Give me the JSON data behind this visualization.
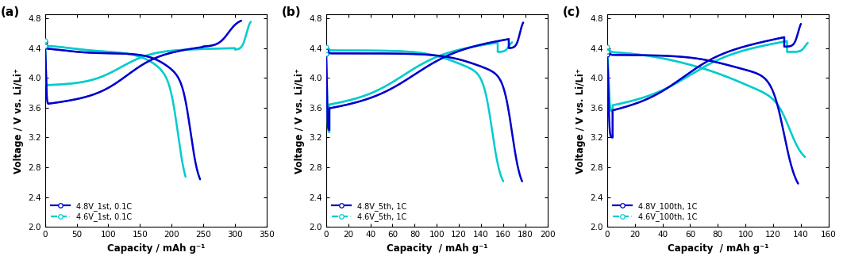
{
  "panels": [
    {
      "label": "(a)",
      "xlim": [
        0,
        350
      ],
      "xticks": [
        0,
        50,
        100,
        150,
        200,
        250,
        300,
        350
      ],
      "ylim": [
        2.0,
        4.85
      ],
      "yticks": [
        2.0,
        2.4,
        2.8,
        3.2,
        3.6,
        4.0,
        4.4,
        4.8
      ],
      "xlabel": "Capacity / mAh g⁻¹",
      "ylabel": "Voltage / V vs. Li/Li⁺",
      "legend": [
        "4.8V_1st, 0.1C",
        "4.6V_1st, 0.1C"
      ]
    },
    {
      "label": "(b)",
      "xlim": [
        0,
        200
      ],
      "xticks": [
        0,
        20,
        40,
        60,
        80,
        100,
        120,
        140,
        160,
        180,
        200
      ],
      "ylim": [
        2.0,
        4.85
      ],
      "yticks": [
        2.0,
        2.4,
        2.8,
        3.2,
        3.6,
        4.0,
        4.4,
        4.8
      ],
      "xlabel": "Capacity  / mAh g⁻¹",
      "ylabel": "Voltage / V vs. Li/Li⁺",
      "legend": [
        "4.8V_5th, 1C",
        "4.6V_5th, 1C"
      ]
    },
    {
      "label": "(c)",
      "xlim": [
        0,
        160
      ],
      "xticks": [
        0,
        20,
        40,
        60,
        80,
        100,
        120,
        140,
        160
      ],
      "ylim": [
        2.0,
        4.85
      ],
      "yticks": [
        2.0,
        2.4,
        2.8,
        3.2,
        3.6,
        4.0,
        4.4,
        4.8
      ],
      "xlabel": "Capacity  / mAh g⁻¹",
      "ylabel": "Voltage / V vs. Li/Li⁺",
      "legend": [
        "4.8V_100th, 1C",
        "4.6V_100th, 1C"
      ]
    }
  ],
  "color_48": "#0000CD",
  "color_46": "#00CCCC",
  "background": "#ffffff"
}
